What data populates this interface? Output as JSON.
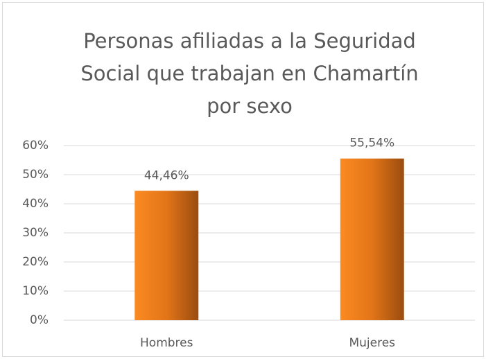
{
  "chart_data": {
    "type": "bar",
    "title": "Personas afiliadas a la Seguridad Social que trabajan en Chamartín por sexo",
    "categories": [
      "Hombres",
      "Mujeres"
    ],
    "values": [
      44.46,
      55.54
    ],
    "value_labels": [
      "44,46%",
      "55,54%"
    ],
    "color": "#f38320",
    "ylim": [
      0,
      60
    ],
    "yticks": [
      {
        "value": 0,
        "label": "0%"
      },
      {
        "value": 10,
        "label": "10%"
      },
      {
        "value": 20,
        "label": "20%"
      },
      {
        "value": 30,
        "label": "30%"
      },
      {
        "value": 40,
        "label": "40%"
      },
      {
        "value": 50,
        "label": "50%"
      },
      {
        "value": 60,
        "label": "60%"
      }
    ],
    "grid": true
  }
}
